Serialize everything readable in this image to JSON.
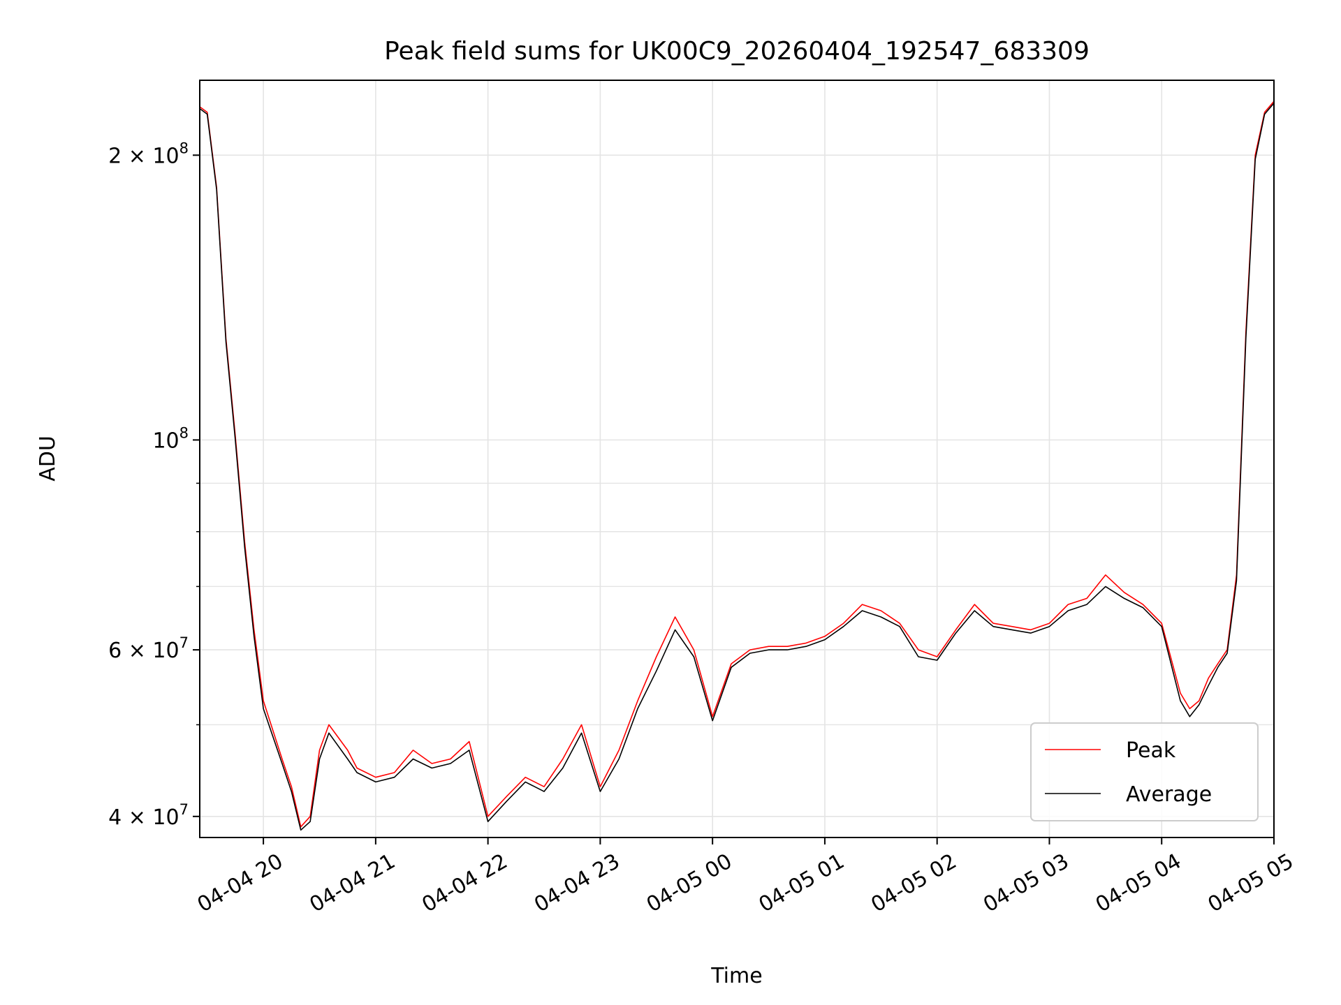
{
  "chart_data": {
    "type": "line",
    "title": "Peak field sums for UK00C9_20260404_192547_683309",
    "xlabel": "Time",
    "ylabel": "ADU",
    "y_scale": "log",
    "ylim": [
      38000000,
      240000000
    ],
    "xlim": [
      "2026-04-04 19:26",
      "2026-04-05 05:00"
    ],
    "x_ticks": [
      {
        "value": "2026-04-04 20:00",
        "label": "04-04 20"
      },
      {
        "value": "2026-04-04 21:00",
        "label": "04-04 21"
      },
      {
        "value": "2026-04-04 22:00",
        "label": "04-04 22"
      },
      {
        "value": "2026-04-04 23:00",
        "label": "04-04 23"
      },
      {
        "value": "2026-04-05 00:00",
        "label": "04-05 00"
      },
      {
        "value": "2026-04-05 01:00",
        "label": "04-05 01"
      },
      {
        "value": "2026-04-05 02:00",
        "label": "04-05 02"
      },
      {
        "value": "2026-04-05 03:00",
        "label": "04-05 03"
      },
      {
        "value": "2026-04-05 04:00",
        "label": "04-05 04"
      },
      {
        "value": "2026-04-05 05:00",
        "label": "04-05 05"
      }
    ],
    "y_ticks": [
      {
        "value": 40000000,
        "base": "4",
        "exp": "7"
      },
      {
        "value": 60000000,
        "base": "6",
        "exp": "7"
      },
      {
        "value": 100000000,
        "base": "10",
        "exp": "8"
      },
      {
        "value": 200000000,
        "base": "2",
        "exp": "8"
      }
    ],
    "y_minor_ticks": [
      50000000,
      70000000,
      80000000,
      90000000
    ],
    "grid": true,
    "legend_position": "lower-right",
    "series": [
      {
        "name": "Peak",
        "color": "#ff0000",
        "x": [
          "2026-04-04 19:26",
          "2026-04-04 19:30",
          "2026-04-04 19:35",
          "2026-04-04 19:40",
          "2026-04-04 19:45",
          "2026-04-04 19:50",
          "2026-04-04 19:55",
          "2026-04-04 20:00",
          "2026-04-04 20:10",
          "2026-04-04 20:15",
          "2026-04-04 20:20",
          "2026-04-04 20:25",
          "2026-04-04 20:30",
          "2026-04-04 20:35",
          "2026-04-04 20:45",
          "2026-04-04 20:50",
          "2026-04-04 21:00",
          "2026-04-04 21:10",
          "2026-04-04 21:20",
          "2026-04-04 21:30",
          "2026-04-04 21:40",
          "2026-04-04 21:50",
          "2026-04-04 22:00",
          "2026-04-04 22:10",
          "2026-04-04 22:20",
          "2026-04-04 22:30",
          "2026-04-04 22:40",
          "2026-04-04 22:50",
          "2026-04-04 23:00",
          "2026-04-04 23:10",
          "2026-04-04 23:20",
          "2026-04-04 23:30",
          "2026-04-04 23:40",
          "2026-04-04 23:50",
          "2026-04-05 00:00",
          "2026-04-05 00:10",
          "2026-04-05 00:20",
          "2026-04-05 00:30",
          "2026-04-05 00:40",
          "2026-04-05 00:50",
          "2026-04-05 01:00",
          "2026-04-05 01:10",
          "2026-04-05 01:20",
          "2026-04-05 01:30",
          "2026-04-05 01:40",
          "2026-04-05 01:50",
          "2026-04-05 02:00",
          "2026-04-05 02:10",
          "2026-04-05 02:20",
          "2026-04-05 02:30",
          "2026-04-05 02:40",
          "2026-04-05 02:50",
          "2026-04-05 03:00",
          "2026-04-05 03:10",
          "2026-04-05 03:20",
          "2026-04-05 03:30",
          "2026-04-05 03:40",
          "2026-04-05 03:50",
          "2026-04-05 04:00",
          "2026-04-05 04:10",
          "2026-04-05 04:15",
          "2026-04-05 04:20",
          "2026-04-05 04:25",
          "2026-04-05 04:30",
          "2026-04-05 04:35",
          "2026-04-05 04:40",
          "2026-04-05 04:45",
          "2026-04-05 04:50",
          "2026-04-05 04:55",
          "2026-04-05 05:00"
        ],
        "y": [
          225000000,
          222000000,
          185000000,
          128000000,
          101000000,
          78000000,
          63000000,
          53000000,
          46000000,
          43000000,
          39000000,
          40000000,
          47000000,
          50000000,
          47000000,
          45000000,
          44000000,
          44500000,
          47000000,
          45500000,
          46000000,
          48000000,
          40000000,
          42000000,
          44000000,
          43000000,
          46000000,
          50000000,
          43000000,
          47000000,
          53000000,
          59000000,
          65000000,
          60000000,
          51000000,
          58000000,
          60000000,
          60500000,
          60500000,
          61000000,
          62000000,
          64000000,
          67000000,
          66000000,
          64000000,
          60000000,
          59000000,
          63000000,
          67000000,
          64000000,
          63500000,
          63000000,
          64000000,
          67000000,
          68000000,
          72000000,
          69000000,
          67000000,
          64000000,
          54000000,
          52000000,
          53000000,
          56000000,
          58000000,
          60000000,
          72000000,
          130000000,
          200000000,
          222000000,
          228000000
        ]
      },
      {
        "name": "Average",
        "color": "#000000",
        "x": [
          "2026-04-04 19:26",
          "2026-04-04 19:30",
          "2026-04-04 19:35",
          "2026-04-04 19:40",
          "2026-04-04 19:45",
          "2026-04-04 19:50",
          "2026-04-04 19:55",
          "2026-04-04 20:00",
          "2026-04-04 20:10",
          "2026-04-04 20:15",
          "2026-04-04 20:20",
          "2026-04-04 20:25",
          "2026-04-04 20:30",
          "2026-04-04 20:35",
          "2026-04-04 20:45",
          "2026-04-04 20:50",
          "2026-04-04 21:00",
          "2026-04-04 21:10",
          "2026-04-04 21:20",
          "2026-04-04 21:30",
          "2026-04-04 21:40",
          "2026-04-04 21:50",
          "2026-04-04 22:00",
          "2026-04-04 22:10",
          "2026-04-04 22:20",
          "2026-04-04 22:30",
          "2026-04-04 22:40",
          "2026-04-04 22:50",
          "2026-04-04 23:00",
          "2026-04-04 23:10",
          "2026-04-04 23:20",
          "2026-04-04 23:30",
          "2026-04-04 23:40",
          "2026-04-04 23:50",
          "2026-04-05 00:00",
          "2026-04-05 00:10",
          "2026-04-05 00:20",
          "2026-04-05 00:30",
          "2026-04-05 00:40",
          "2026-04-05 00:50",
          "2026-04-05 01:00",
          "2026-04-05 01:10",
          "2026-04-05 01:20",
          "2026-04-05 01:30",
          "2026-04-05 01:40",
          "2026-04-05 01:50",
          "2026-04-05 02:00",
          "2026-04-05 02:10",
          "2026-04-05 02:20",
          "2026-04-05 02:30",
          "2026-04-05 02:40",
          "2026-04-05 02:50",
          "2026-04-05 03:00",
          "2026-04-05 03:10",
          "2026-04-05 03:20",
          "2026-04-05 03:30",
          "2026-04-05 03:40",
          "2026-04-05 03:50",
          "2026-04-05 04:00",
          "2026-04-05 04:10",
          "2026-04-05 04:15",
          "2026-04-05 04:20",
          "2026-04-05 04:25",
          "2026-04-05 04:30",
          "2026-04-05 04:35",
          "2026-04-05 04:40",
          "2026-04-05 04:45",
          "2026-04-05 04:50",
          "2026-04-05 04:55",
          "2026-04-05 05:00"
        ],
        "y": [
          224000000,
          221000000,
          184000000,
          127000000,
          100000000,
          77000000,
          62000000,
          52000000,
          45500000,
          42500000,
          38700000,
          39500000,
          46000000,
          49000000,
          46000000,
          44500000,
          43500000,
          44000000,
          46000000,
          45000000,
          45500000,
          47000000,
          39500000,
          41500000,
          43500000,
          42500000,
          45000000,
          49000000,
          42500000,
          46000000,
          52000000,
          57000000,
          63000000,
          59000000,
          50500000,
          57500000,
          59500000,
          60000000,
          60000000,
          60500000,
          61500000,
          63500000,
          66000000,
          65000000,
          63500000,
          59000000,
          58500000,
          62500000,
          66000000,
          63500000,
          63000000,
          62500000,
          63500000,
          66000000,
          67000000,
          70000000,
          68000000,
          66500000,
          63500000,
          53000000,
          51000000,
          52500000,
          55000000,
          57500000,
          59500000,
          71000000,
          128000000,
          198000000,
          221000000,
          227000000
        ]
      }
    ]
  }
}
